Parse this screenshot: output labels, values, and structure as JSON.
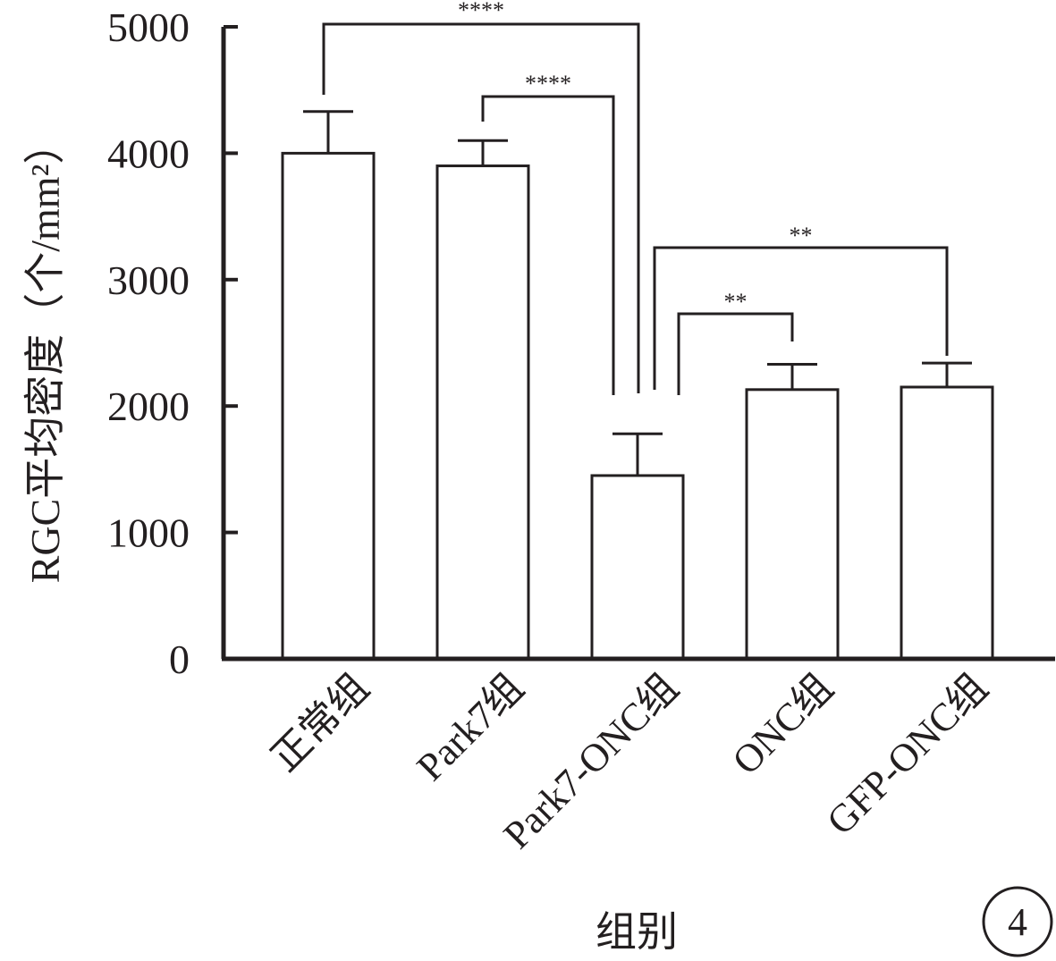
{
  "chart_data": {
    "type": "bar",
    "title": "",
    "xlabel": "组别",
    "ylabel": "RGC平均密度（个/mm²）",
    "ylim": [
      0,
      5000
    ],
    "yticks": [
      0,
      1000,
      2000,
      3000,
      4000,
      5000
    ],
    "categories": [
      "正常组",
      "Park7组",
      "Park7-ONC组",
      "ONC组",
      "GFP-ONC组"
    ],
    "values": [
      4000,
      3900,
      1450,
      2130,
      2150
    ],
    "errors": [
      330,
      200,
      330,
      200,
      190
    ],
    "significance": [
      {
        "from": 0,
        "to": 2,
        "label": "****"
      },
      {
        "from": 1,
        "to": 2,
        "label": "****"
      },
      {
        "from": 2,
        "to": 4,
        "label": "**"
      },
      {
        "from": 2,
        "to": 3,
        "label": "**"
      }
    ],
    "grid": false,
    "legend": "none",
    "colors": {
      "bar_fill": "#ffffff",
      "stroke": "#231f20"
    }
  },
  "panel_label": "4"
}
